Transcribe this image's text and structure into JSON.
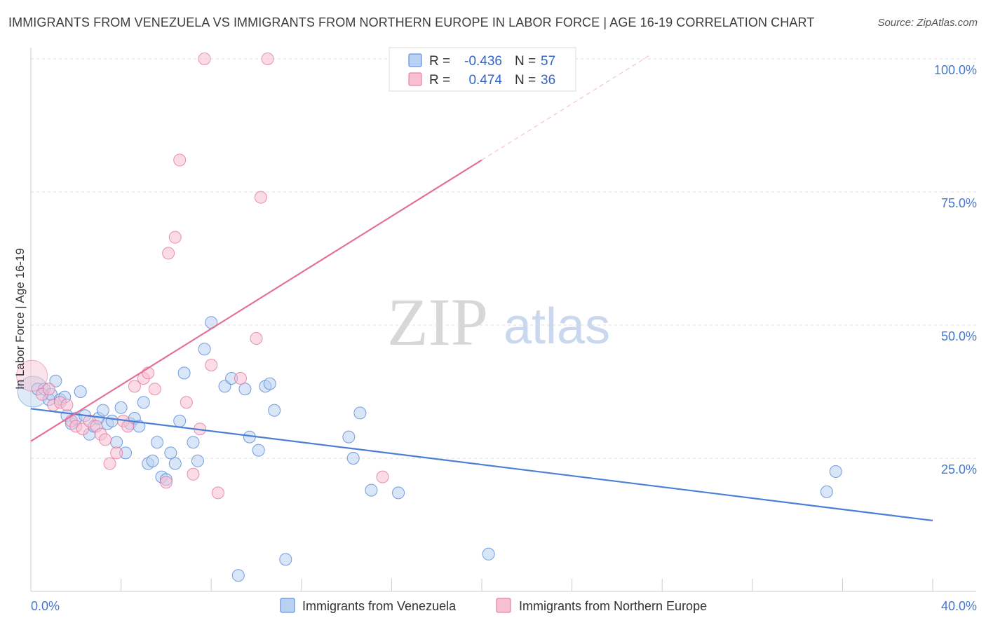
{
  "chart_data": {
    "type": "scatter",
    "title": "IMMIGRANTS FROM VENEZUELA VS IMMIGRANTS FROM NORTHERN EUROPE IN LABOR FORCE | AGE 16-19 CORRELATION CHART",
    "source": "Source: ZipAtlas.com",
    "ylabel": "In Labor Force | Age 16-19",
    "xlim": [
      0,
      40
    ],
    "ylim": [
      0,
      100
    ],
    "x_tick_labels": [
      {
        "value": 0,
        "label": "0.0%"
      },
      {
        "value": 40,
        "label": "40.0%"
      }
    ],
    "y_tick_labels": [
      {
        "value": 25,
        "label": "25.0%"
      },
      {
        "value": 50,
        "label": "50.0%"
      },
      {
        "value": 75,
        "label": "75.0%"
      },
      {
        "value": 100,
        "label": "100.0%"
      }
    ],
    "grid": true,
    "watermark": {
      "part1": "ZIP",
      "part2": "atlas"
    },
    "legend": [
      {
        "r_label": "R =",
        "r_value": "-0.436",
        "n_label": "N =",
        "n_value": "57"
      },
      {
        "r_label": "R =",
        "r_value": "0.474",
        "n_label": "N =",
        "n_value": "36"
      }
    ],
    "series": [
      {
        "name": "Immigrants from Venezuela",
        "color": "#4a7fd4",
        "fill": "#b9d1f2",
        "trend": {
          "x0": 0,
          "y0": 34.3,
          "x1": 40,
          "y1": 13.3
        },
        "points": [
          [
            0.3,
            38
          ],
          [
            0.6,
            38
          ],
          [
            0.8,
            36
          ],
          [
            0.9,
            37
          ],
          [
            1.1,
            39.5
          ],
          [
            1.3,
            36
          ],
          [
            1.5,
            36.5
          ],
          [
            1.6,
            33
          ],
          [
            1.8,
            31.5
          ],
          [
            2.0,
            32.5
          ],
          [
            2.2,
            37.5
          ],
          [
            2.4,
            33
          ],
          [
            2.6,
            29.5
          ],
          [
            2.8,
            31
          ],
          [
            3.0,
            32.5
          ],
          [
            3.2,
            34
          ],
          [
            3.4,
            31.5
          ],
          [
            3.6,
            32
          ],
          [
            3.8,
            28
          ],
          [
            4.0,
            34.5
          ],
          [
            4.2,
            26
          ],
          [
            4.4,
            31.5
          ],
          [
            4.6,
            32.5
          ],
          [
            4.8,
            31
          ],
          [
            5.0,
            35.5
          ],
          [
            5.2,
            24
          ],
          [
            5.4,
            24.5
          ],
          [
            5.6,
            28
          ],
          [
            5.8,
            21.5
          ],
          [
            6.0,
            21
          ],
          [
            6.2,
            26
          ],
          [
            6.4,
            24
          ],
          [
            6.6,
            32
          ],
          [
            6.8,
            41
          ],
          [
            7.2,
            28
          ],
          [
            7.4,
            24.5
          ],
          [
            7.7,
            45.5
          ],
          [
            8.0,
            50.5
          ],
          [
            8.6,
            38.5
          ],
          [
            8.9,
            40
          ],
          [
            9.2,
            3
          ],
          [
            9.5,
            38
          ],
          [
            9.7,
            29
          ],
          [
            10.1,
            26.5
          ],
          [
            10.4,
            38.5
          ],
          [
            10.6,
            39
          ],
          [
            10.8,
            34
          ],
          [
            11.3,
            6
          ],
          [
            14.1,
            29
          ],
          [
            14.3,
            25
          ],
          [
            14.6,
            33.5
          ],
          [
            15.1,
            19
          ],
          [
            16.3,
            18.5
          ],
          [
            20.3,
            7
          ],
          [
            35.3,
            18.7
          ],
          [
            35.7,
            22.5
          ]
        ],
        "large_points": [
          [
            0.1,
            37.5
          ]
        ]
      },
      {
        "name": "Immigrants from Northern Europe",
        "color": "#e56e96",
        "fill": "#f7c0d2",
        "trend": {
          "x0": 0,
          "y0": 28.2,
          "x1": 20,
          "y1": 81.0
        },
        "trend_extension": {
          "x0": 20,
          "y0": 81.0,
          "x1": 27.5,
          "y1": 100.8
        },
        "points": [
          [
            0.5,
            37
          ],
          [
            0.8,
            38
          ],
          [
            1.0,
            35
          ],
          [
            1.3,
            35.5
          ],
          [
            1.6,
            35
          ],
          [
            1.8,
            32
          ],
          [
            2.0,
            31
          ],
          [
            2.3,
            30.5
          ],
          [
            2.6,
            32
          ],
          [
            2.9,
            31
          ],
          [
            3.1,
            29.5
          ],
          [
            3.3,
            28.5
          ],
          [
            3.5,
            24
          ],
          [
            3.8,
            26
          ],
          [
            4.1,
            32
          ],
          [
            4.3,
            31
          ],
          [
            4.6,
            38.5
          ],
          [
            5.0,
            40
          ],
          [
            5.2,
            41
          ],
          [
            5.5,
            38
          ],
          [
            6.0,
            20.5
          ],
          [
            6.1,
            63.5
          ],
          [
            6.4,
            66.5
          ],
          [
            6.6,
            81
          ],
          [
            6.9,
            35.5
          ],
          [
            7.2,
            22
          ],
          [
            7.5,
            30.5
          ],
          [
            7.7,
            100
          ],
          [
            8.0,
            42.5
          ],
          [
            8.3,
            18.5
          ],
          [
            9.3,
            40
          ],
          [
            10.0,
            47.5
          ],
          [
            10.2,
            74
          ],
          [
            10.5,
            100
          ],
          [
            15.6,
            21.5
          ]
        ],
        "large_points": [
          [
            0.05,
            40.5
          ]
        ]
      }
    ]
  },
  "bottom_legend": [
    {
      "label": "Immigrants from Venezuela"
    },
    {
      "label": "Immigrants from Northern Europe"
    }
  ]
}
